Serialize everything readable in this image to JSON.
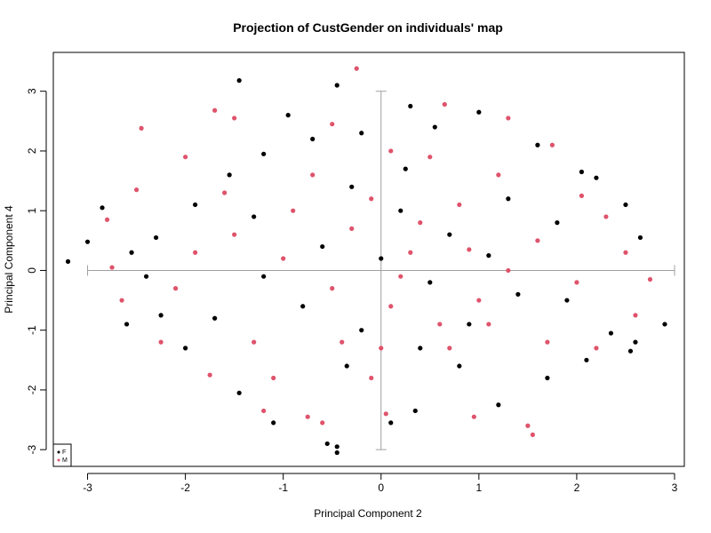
{
  "chart_data": {
    "type": "scatter",
    "title": "Projection of CustGender on individuals' map",
    "xlabel": "Principal Component 2",
    "ylabel": "Principal Component 4",
    "xlim": [
      -3.35,
      3.1
    ],
    "ylim": [
      -3.28,
      3.65
    ],
    "x_ticks": [
      -3,
      -2,
      -1,
      0,
      1,
      2,
      3
    ],
    "y_ticks": [
      -3,
      -2,
      -1,
      0,
      1,
      2,
      3
    ],
    "x_tick_labels": [
      "-3",
      "-2",
      "-1",
      "0",
      "1",
      "2",
      "3"
    ],
    "y_tick_labels": [
      "-3",
      "-2",
      "-1",
      "0",
      "1",
      "2",
      "3"
    ],
    "grid": false,
    "legend_position": "bottom-left",
    "reference_cross": {
      "horizontal": {
        "x_from": -3.0,
        "x_to": 3.0,
        "y": 0
      },
      "vertical": {
        "y_from": -3.0,
        "y_to": 3.0,
        "x": 0
      },
      "color": "#a0a0a0"
    },
    "series": [
      {
        "name": "F",
        "color": "#000000",
        "points": [
          [
            -3.2,
            0.15
          ],
          [
            -3.0,
            0.48
          ],
          [
            -2.85,
            1.05
          ],
          [
            -2.6,
            -0.9
          ],
          [
            -2.55,
            0.3
          ],
          [
            -1.45,
            3.18
          ],
          [
            -0.45,
            3.1
          ],
          [
            -0.2,
            2.3
          ],
          [
            0.3,
            2.75
          ],
          [
            0.55,
            2.4
          ],
          [
            -0.95,
            2.6
          ],
          [
            1.0,
            2.65
          ],
          [
            -0.7,
            2.2
          ],
          [
            1.6,
            2.1
          ],
          [
            2.05,
            1.65
          ],
          [
            2.2,
            1.55
          ],
          [
            2.5,
            1.1
          ],
          [
            2.65,
            0.55
          ],
          [
            2.9,
            -0.9
          ],
          [
            2.6,
            -1.2
          ],
          [
            2.55,
            -1.35
          ],
          [
            2.35,
            -1.05
          ],
          [
            2.1,
            -1.5
          ],
          [
            1.7,
            -1.8
          ],
          [
            1.2,
            -2.25
          ],
          [
            0.35,
            -2.35
          ],
          [
            -0.45,
            -2.95
          ],
          [
            -0.55,
            -2.9
          ],
          [
            -0.45,
            -3.05
          ],
          [
            0.1,
            -2.55
          ],
          [
            -1.1,
            -2.55
          ],
          [
            -1.45,
            -2.05
          ],
          [
            -2.0,
            -1.3
          ],
          [
            -2.25,
            -0.75
          ],
          [
            -2.4,
            -0.1
          ],
          [
            -2.3,
            0.55
          ],
          [
            -1.9,
            1.1
          ],
          [
            -1.55,
            1.6
          ],
          [
            -1.2,
            1.95
          ],
          [
            -0.3,
            1.4
          ],
          [
            0.2,
            1.0
          ],
          [
            0.7,
            0.6
          ],
          [
            1.1,
            0.25
          ],
          [
            1.4,
            -0.4
          ],
          [
            0.9,
            -0.9
          ],
          [
            0.4,
            -1.3
          ],
          [
            -0.2,
            -1.0
          ],
          [
            -0.8,
            -0.6
          ],
          [
            -1.2,
            -0.1
          ],
          [
            -0.6,
            0.4
          ],
          [
            0.0,
            0.2
          ],
          [
            0.5,
            -0.2
          ],
          [
            1.8,
            0.8
          ],
          [
            -1.7,
            -0.8
          ],
          [
            0.25,
            1.7
          ],
          [
            -0.35,
            -1.6
          ],
          [
            1.3,
            1.2
          ],
          [
            -1.3,
            0.9
          ],
          [
            0.8,
            -1.6
          ],
          [
            1.9,
            -0.5
          ]
        ]
      },
      {
        "name": "M",
        "color": "#df536b",
        "points": [
          [
            -0.25,
            3.38
          ],
          [
            -2.45,
            2.38
          ],
          [
            -1.7,
            2.68
          ],
          [
            -1.5,
            2.55
          ],
          [
            1.3,
            2.55
          ],
          [
            0.65,
            2.78
          ],
          [
            1.75,
            2.1
          ],
          [
            2.05,
            1.25
          ],
          [
            2.5,
            0.3
          ],
          [
            2.75,
            -0.15
          ],
          [
            2.6,
            -0.75
          ],
          [
            2.2,
            -1.3
          ],
          [
            1.55,
            -2.75
          ],
          [
            1.5,
            -2.6
          ],
          [
            0.95,
            -2.45
          ],
          [
            0.05,
            -2.4
          ],
          [
            -0.6,
            -2.55
          ],
          [
            -0.75,
            -2.45
          ],
          [
            -1.2,
            -2.35
          ],
          [
            -1.75,
            -1.75
          ],
          [
            -2.25,
            -1.2
          ],
          [
            -2.65,
            -0.5
          ],
          [
            -2.75,
            0.05
          ],
          [
            -2.8,
            0.85
          ],
          [
            -2.5,
            1.35
          ],
          [
            -2.0,
            1.9
          ],
          [
            -0.5,
            2.45
          ],
          [
            0.1,
            2.0
          ],
          [
            -0.1,
            1.2
          ],
          [
            0.4,
            0.8
          ],
          [
            0.9,
            0.35
          ],
          [
            1.3,
            0.0
          ],
          [
            1.0,
            -0.5
          ],
          [
            0.6,
            -0.9
          ],
          [
            0.1,
            -0.6
          ],
          [
            -0.5,
            -0.3
          ],
          [
            -1.0,
            0.2
          ],
          [
            -1.5,
            0.6
          ],
          [
            -0.9,
            1.0
          ],
          [
            -0.3,
            0.7
          ],
          [
            0.2,
            -0.1
          ],
          [
            0.7,
            -1.3
          ],
          [
            -0.1,
            -1.8
          ],
          [
            -1.3,
            -1.2
          ],
          [
            -1.9,
            0.3
          ],
          [
            1.6,
            0.5
          ],
          [
            2.0,
            -0.2
          ],
          [
            1.2,
            1.6
          ],
          [
            0.5,
            1.9
          ],
          [
            -0.7,
            1.6
          ],
          [
            -1.1,
            -1.8
          ],
          [
            1.7,
            -1.2
          ],
          [
            0.3,
            0.3
          ],
          [
            -0.4,
            -1.2
          ],
          [
            1.1,
            -0.9
          ],
          [
            -2.1,
            -0.3
          ],
          [
            2.3,
            0.9
          ],
          [
            -1.6,
            1.3
          ],
          [
            0.8,
            1.1
          ],
          [
            0.0,
            -1.3
          ]
        ]
      }
    ]
  }
}
